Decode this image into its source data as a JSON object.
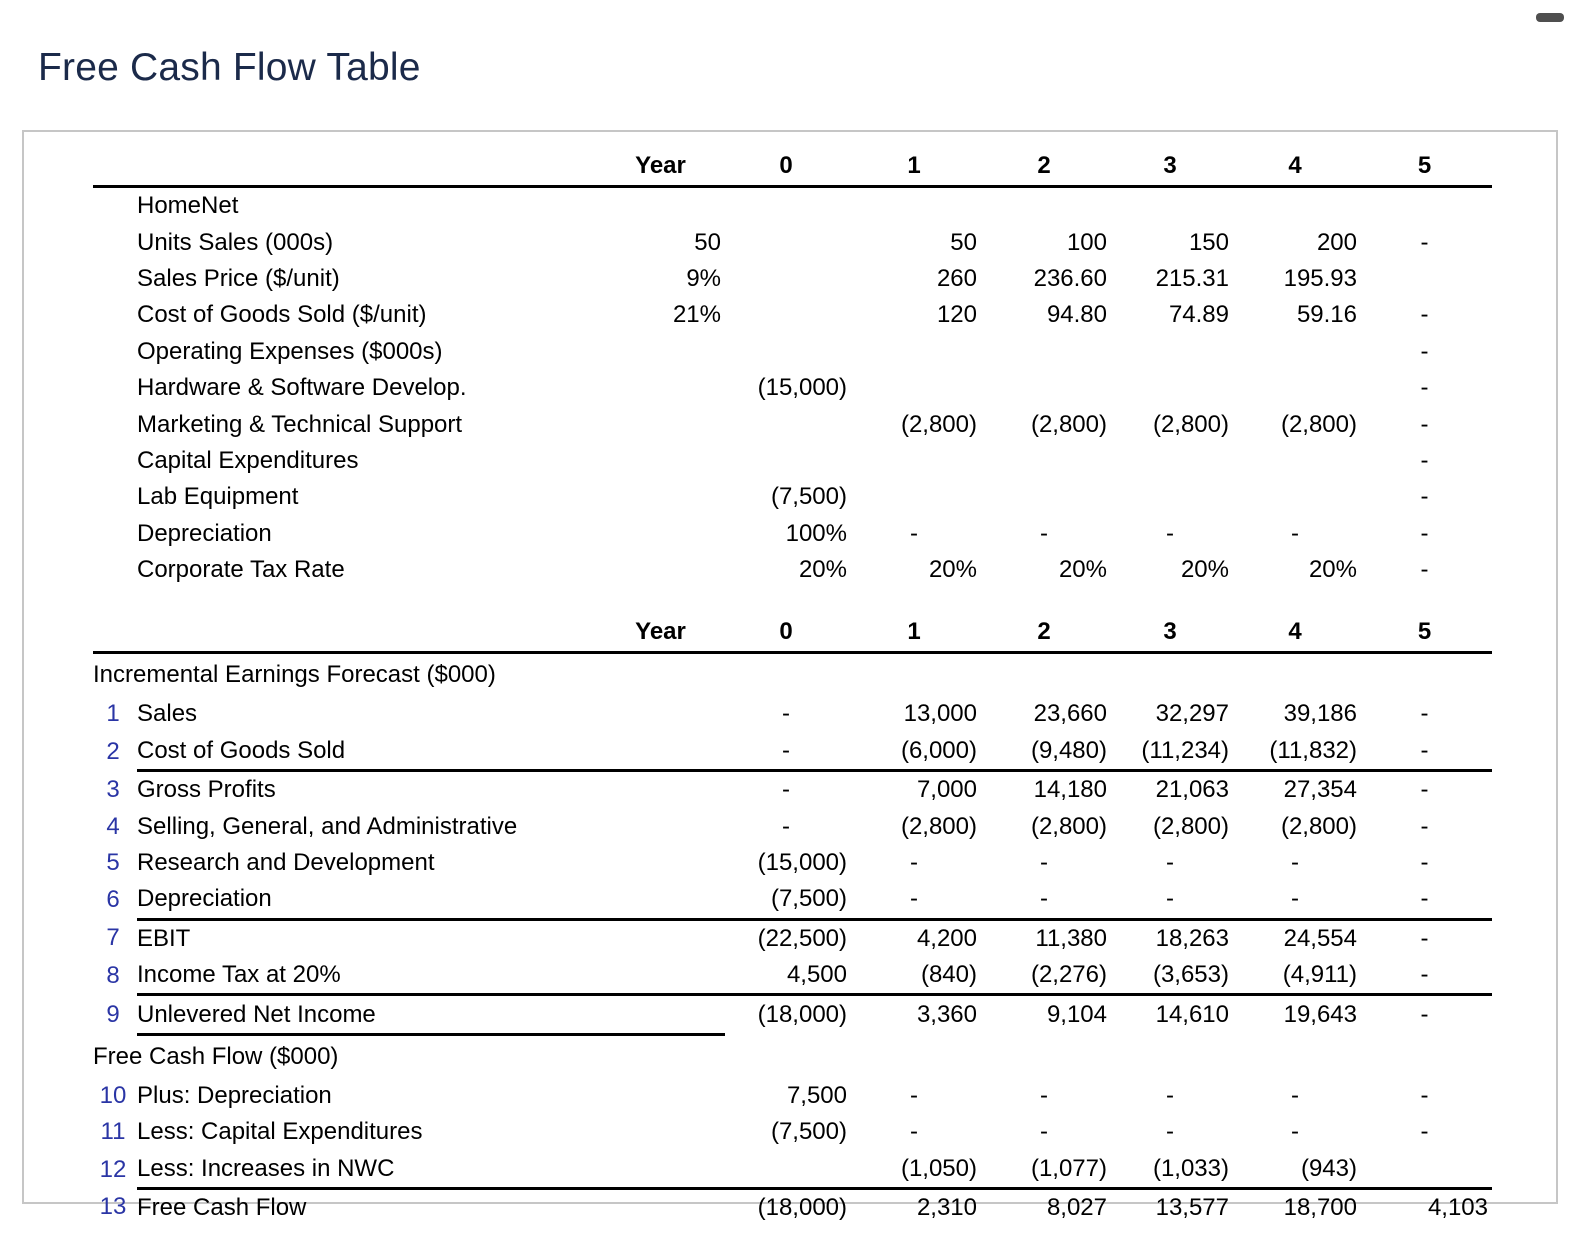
{
  "page": {
    "title": "Free Cash Flow Table"
  },
  "icons": {
    "scrollbar_thumb": "scrollbar-thumb"
  },
  "colors": {
    "title_text": "#1b2a4a",
    "row_number_blue": "#2a35a5",
    "rule_black": "#000000",
    "box_border_gray": "#c6c6c6",
    "scroll_pill_gray": "#4f4f4f"
  },
  "table": {
    "year_label": "Year",
    "years": [
      "0",
      "1",
      "2",
      "3",
      "4",
      "5"
    ],
    "sections": [
      {
        "title": "",
        "rows": [
          {
            "num": "",
            "label": "HomeNet",
            "values": [
              "",
              "",
              "",
              "",
              "",
              "",
              ""
            ]
          },
          {
            "num": "",
            "label": "Units Sales (000s)",
            "values": [
              "50",
              "",
              "50",
              "100",
              "150",
              "200",
              "-"
            ]
          },
          {
            "num": "",
            "label": "Sales Price ($/unit)",
            "values": [
              "9%",
              "",
              "260",
              "236.60",
              "215.31",
              "195.93",
              ""
            ]
          },
          {
            "num": "",
            "label": "Cost of Goods Sold ($/unit)",
            "values": [
              "21%",
              "",
              "120",
              "94.80",
              "74.89",
              "59.16",
              "-"
            ]
          },
          {
            "num": "",
            "label": "Operating Expenses ($000s)",
            "values": [
              "",
              "",
              "",
              "",
              "",
              "",
              "-"
            ]
          },
          {
            "num": "",
            "label": "Hardware & Software Develop.",
            "values": [
              "",
              "(15,000)",
              "",
              "",
              "",
              "",
              "-"
            ]
          },
          {
            "num": "",
            "label": "Marketing & Technical Support",
            "values": [
              "",
              "",
              "(2,800)",
              "(2,800)",
              "(2,800)",
              "(2,800)",
              "-"
            ]
          },
          {
            "num": "",
            "label": "Capital Expenditures",
            "values": [
              "",
              "",
              "",
              "",
              "",
              "",
              "-"
            ]
          },
          {
            "num": "",
            "label": "Lab Equipment",
            "values": [
              "",
              "(7,500)",
              "",
              "",
              "",
              "",
              "-"
            ]
          },
          {
            "num": "",
            "label": "Depreciation",
            "values": [
              "",
              "100%",
              "-",
              "-",
              "-",
              "-",
              "-"
            ]
          },
          {
            "num": "",
            "label": "Corporate Tax Rate",
            "values": [
              "",
              "20%",
              "20%",
              "20%",
              "20%",
              "20%",
              "-"
            ]
          }
        ]
      },
      {
        "title": "Incremental Earnings Forecast ($000)",
        "rows": [
          {
            "num": "1",
            "label": "Sales",
            "values": [
              "",
              "-",
              "13,000",
              "23,660",
              "32,297",
              "39,186",
              "-"
            ]
          },
          {
            "num": "2",
            "label": "Cost of Goods Sold",
            "values": [
              "",
              "-",
              "(6,000)",
              "(9,480)",
              "(11,234)",
              "(11,832)",
              "-"
            ],
            "rule": "full"
          },
          {
            "num": "3",
            "label": "Gross Profits",
            "values": [
              "",
              "-",
              "7,000",
              "14,180",
              "21,063",
              "27,354",
              "-"
            ]
          },
          {
            "num": "4",
            "label": "Selling, General, and Administrative",
            "values": [
              "",
              "-",
              "(2,800)",
              "(2,800)",
              "(2,800)",
              "(2,800)",
              "-"
            ]
          },
          {
            "num": "5",
            "label": "Research and Development",
            "values": [
              "",
              "(15,000)",
              "-",
              "-",
              "-",
              "-",
              "-"
            ]
          },
          {
            "num": "6",
            "label": "Depreciation",
            "values": [
              "",
              "(7,500)",
              "-",
              "-",
              "-",
              "-",
              "-"
            ],
            "rule": "full"
          },
          {
            "num": "7",
            "label": "EBIT",
            "values": [
              "",
              "(22,500)",
              "4,200",
              "11,380",
              "18,263",
              "24,554",
              "-"
            ]
          },
          {
            "num": "8",
            "label": "Income Tax at 20%",
            "values": [
              "",
              "4,500",
              "(840)",
              "(2,276)",
              "(3,653)",
              "(4,911)",
              "-"
            ],
            "rule": "full"
          },
          {
            "num": "9",
            "label": "Unlevered Net Income",
            "values": [
              "",
              "(18,000)",
              "3,360",
              "9,104",
              "14,610",
              "19,643",
              "-"
            ],
            "rule": "part"
          }
        ]
      },
      {
        "title": "Free Cash Flow ($000)",
        "rows": [
          {
            "num": "10",
            "label": "Plus: Depreciation",
            "values": [
              "",
              "7,500",
              "-",
              "-",
              "-",
              "-",
              "-"
            ]
          },
          {
            "num": "11",
            "label": "Less: Capital Expenditures",
            "values": [
              "",
              "(7,500)",
              "-",
              "-",
              "-",
              "-",
              "-"
            ]
          },
          {
            "num": "12",
            "label": "Less: Increases in NWC",
            "values": [
              "",
              "",
              "(1,050)",
              "(1,077)",
              "(1,033)",
              "(943)",
              ""
            ],
            "rule": "full"
          },
          {
            "num": "13",
            "label": "Free Cash Flow",
            "values": [
              "",
              "(18,000)",
              "2,310",
              "8,027",
              "13,577",
              "18,700",
              "4,103"
            ]
          }
        ]
      }
    ]
  }
}
